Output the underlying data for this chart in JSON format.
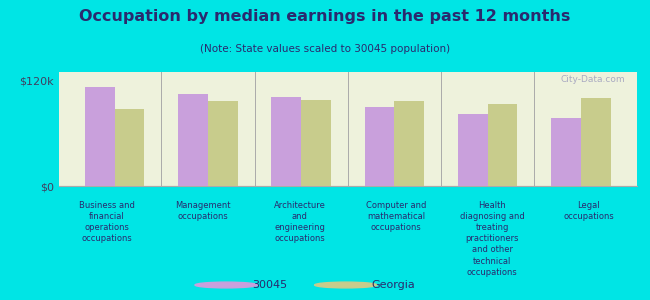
{
  "title": "Occupation by median earnings in the past 12 months",
  "subtitle": "(Note: State values scaled to 30045 population)",
  "background_outer": "#00e5e5",
  "background_inner": "#eef2dc",
  "bar_color_30045": "#c9a0dc",
  "bar_color_georgia": "#c8cc8c",
  "categories": [
    "Business and\nfinancial\noperations\noccupations",
    "Management\noccupations",
    "Architecture\nand\nengineering\noccupations",
    "Computer and\nmathematical\noccupations",
    "Health\ndiagnosing and\ntreating\npractitioners\nand other\ntechnical\noccupations",
    "Legal\noccupations"
  ],
  "values_30045": [
    113000,
    105000,
    102000,
    90000,
    82000,
    78000
  ],
  "values_georgia": [
    88000,
    97000,
    98000,
    97000,
    93000,
    100000
  ],
  "ylim": [
    0,
    130000
  ],
  "yticks": [
    0,
    120000
  ],
  "ytick_labels": [
    "$0",
    "$120k"
  ],
  "ylabel_color": "#404060",
  "text_color": "#2a2a6e",
  "legend_label_30045": "30045",
  "legend_label_georgia": "Georgia",
  "watermark": "City-Data.com"
}
